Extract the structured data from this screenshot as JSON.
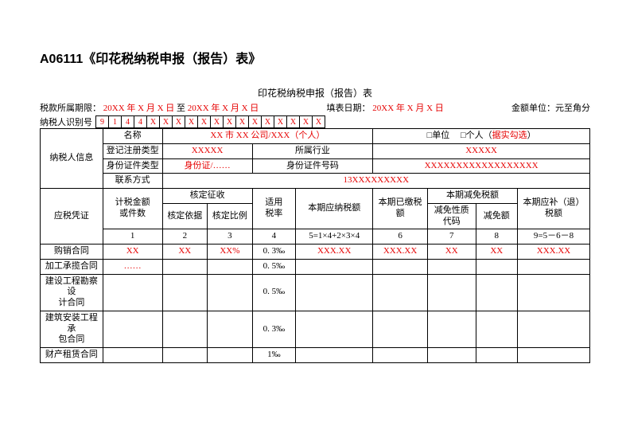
{
  "formCodeTitle": "A06111《印花税纳税申报（报告）表》",
  "subtitle": "印花税纳税申报（报告）表",
  "periodLabel": "税款所属期限：",
  "periodFrom": "20XX 年 X 月 X 日",
  "periodTo": "至",
  "periodToDate": "20XX 年 X 月 X 日",
  "fillDateLabel": "填表日期：",
  "fillDate": "20XX 年 X 月 X 日",
  "amountUnit": "金额单位：元至角分",
  "taxpayerIdLabel": "纳税人识别号",
  "taxpayerIdChars": [
    "9",
    "1",
    "4",
    "4",
    "X",
    "X",
    "X",
    "X",
    "X",
    "X",
    "X",
    "X",
    "X",
    "X",
    "X",
    "X",
    "X",
    "X"
  ],
  "info": {
    "sectionLabel": "纳税人信息",
    "nameLabel": "名称",
    "nameValue": "XX 市 XX 公司/XXX（个人）",
    "unitCheckbox": "□单位",
    "personCheckbox": "□个人（",
    "personNote": "据实勾选",
    "personCloseParen": "）",
    "regTypeLabel": "登记注册类型",
    "regTypeValue": "XXXXX",
    "industryLabel": "所属行业",
    "industryValue": "XXXXX",
    "idTypeLabel": "身份证件类型",
    "idTypeValue": "身份证/……",
    "idNoLabel": "身份证件号码",
    "idNoValue": "XXXXXXXXXXXXXXXXXX",
    "contactLabel": "联系方式",
    "contactValue": "13XXXXXXXXX"
  },
  "columns": {
    "voucher": "应税凭证",
    "countOrAmount": "计税金额\n或件数",
    "approved": "核定征收",
    "approvedBasis": "核定依据",
    "approvedRatio": "核定比例",
    "rate": "适用\n税率",
    "payable": "本期应纳税额",
    "paid": "本期已缴税\n额",
    "reduction": "本期减免税额",
    "reductionCode": "减免性质\n代码",
    "reductionAmount": "减免额",
    "refund": "本期应补（退）税额"
  },
  "colIndex": {
    "c1": "1",
    "c2": "2",
    "c3": "3",
    "c4": "4",
    "c5": "5=1×4+2×3×4",
    "c6": "6",
    "c7": "7",
    "c8": "8",
    "c9": "9=5－6－8"
  },
  "rows": [
    {
      "name": "购销合同",
      "c1": "XX",
      "c2": "XX",
      "c3": "XX%",
      "c4": "0. 3‰",
      "c5": "XXX.XX",
      "c6": "XXX.XX",
      "c7": "XX",
      "c8": "XX",
      "c9": "XXX.XX"
    },
    {
      "name": "加工承揽合同",
      "c1": "……",
      "c2": "",
      "c3": "",
      "c4": "0. 5‰",
      "c5": "",
      "c6": "",
      "c7": "",
      "c8": "",
      "c9": ""
    },
    {
      "name": "建设工程勘察设\n计合同",
      "c1": "",
      "c2": "",
      "c3": "",
      "c4": "0. 5‰",
      "c5": "",
      "c6": "",
      "c7": "",
      "c8": "",
      "c9": ""
    },
    {
      "name": "建筑安装工程承\n包合同",
      "c1": "",
      "c2": "",
      "c3": "",
      "c4": "0. 3‰",
      "c5": "",
      "c6": "",
      "c7": "",
      "c8": "",
      "c9": ""
    },
    {
      "name": "财产租赁合同",
      "c1": "",
      "c2": "",
      "c3": "",
      "c4": "1‰",
      "c5": "",
      "c6": "",
      "c7": "",
      "c8": "",
      "c9": ""
    }
  ]
}
